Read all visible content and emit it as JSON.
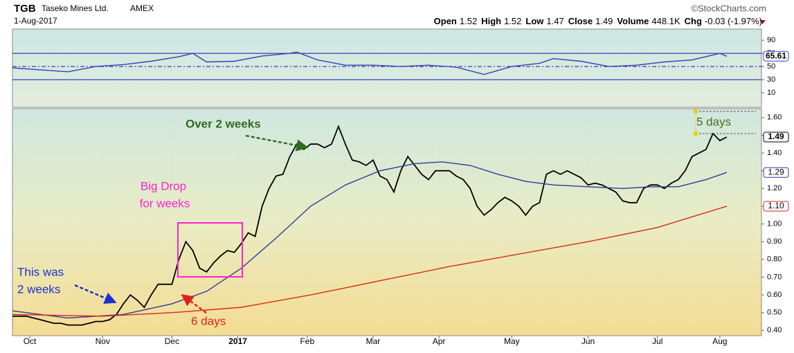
{
  "header": {
    "symbol": "TGB",
    "company": "Taseko Mines Ltd.",
    "exchange": "AMEX",
    "date": "1-Aug-2017",
    "source": "©StockCharts.com",
    "quote": [
      {
        "label": "Open",
        "value": "1.52"
      },
      {
        "label": "High",
        "value": "1.52"
      },
      {
        "label": "Low",
        "value": "1.47"
      },
      {
        "label": "Close",
        "value": "1.49"
      },
      {
        "label": "Volume",
        "value": "448.1K"
      },
      {
        "label": "Chg",
        "value": "-0.03 (-1.97%)"
      }
    ]
  },
  "chart_data": [
    {
      "type": "line",
      "xlim": [
        0,
        216
      ],
      "ylim": [
        -12,
        107
      ],
      "yticks": [
        10,
        30,
        50,
        70,
        90
      ],
      "reference_lines": [
        30,
        50,
        70
      ],
      "series": [
        {
          "name": "RSI",
          "color": "#3340b8",
          "label": "65.61",
          "x": [
            0,
            8,
            16,
            24,
            32,
            40,
            48,
            52,
            56,
            64,
            72,
            80,
            82,
            88,
            96,
            104,
            112,
            120,
            128,
            136,
            144,
            152,
            156,
            164,
            172,
            180,
            188,
            196,
            204,
            206
          ],
          "values": [
            48,
            45,
            42,
            50,
            53,
            58,
            65,
            70,
            57,
            58,
            66,
            70,
            72,
            60,
            52,
            52,
            50,
            52,
            49,
            38,
            50,
            55,
            62,
            58,
            50,
            52,
            57,
            60,
            70,
            65.61
          ]
        }
      ]
    },
    {
      "type": "line",
      "xlim": [
        0,
        216
      ],
      "ylim": [
        0.37,
        1.65
      ],
      "grid": true,
      "yticks": [
        {
          "value": 0.4,
          "label": "0.40"
        },
        {
          "value": 0.5,
          "label": "0.50"
        },
        {
          "value": 0.6,
          "label": "0.60"
        },
        {
          "value": 0.7,
          "label": "0.70"
        },
        {
          "value": 0.8,
          "label": "0.80"
        },
        {
          "value": 0.9,
          "label": "0.90"
        },
        {
          "value": 1.0,
          "label": "1.00"
        },
        {
          "value": 1.1,
          "label": "1.10"
        },
        {
          "value": 1.2,
          "label": "1.20"
        },
        {
          "value": 1.3,
          "label": "1.30"
        },
        {
          "value": 1.4,
          "label": "1.40"
        },
        {
          "value": 1.5,
          "label": "1.50"
        },
        {
          "value": 1.6,
          "label": "1.60"
        }
      ],
      "xticks": [
        {
          "value": 5,
          "label": "Oct"
        },
        {
          "value": 26,
          "label": "Nov"
        },
        {
          "value": 46,
          "label": "Dec"
        },
        {
          "value": 65,
          "label": "2017"
        },
        {
          "value": 85,
          "label": "Feb"
        },
        {
          "value": 104,
          "label": "Mar"
        },
        {
          "value": 123,
          "label": "Apr"
        },
        {
          "value": 144,
          "label": "May"
        },
        {
          "value": 166,
          "label": "Jun"
        },
        {
          "value": 186,
          "label": "Jul"
        },
        {
          "value": 204,
          "label": "Aug"
        }
      ],
      "series": [
        {
          "name": "TGB",
          "color": "#000000",
          "label": "1.49",
          "x": [
            0,
            2,
            4,
            6,
            8,
            10,
            12,
            14,
            16,
            18,
            20,
            22,
            24,
            26,
            28,
            30,
            32,
            34,
            36,
            38,
            40,
            42,
            44,
            46,
            48,
            50,
            52,
            54,
            56,
            58,
            60,
            62,
            64,
            66,
            68,
            70,
            72,
            74,
            76,
            78,
            80,
            82,
            84,
            86,
            88,
            90,
            92,
            94,
            96,
            98,
            100,
            102,
            104,
            106,
            108,
            110,
            112,
            114,
            116,
            118,
            120,
            122,
            124,
            126,
            128,
            130,
            132,
            134,
            136,
            138,
            140,
            142,
            144,
            146,
            148,
            150,
            152,
            154,
            156,
            158,
            160,
            162,
            164,
            166,
            168,
            170,
            172,
            174,
            176,
            178,
            180,
            182,
            184,
            186,
            188,
            190,
            192,
            194,
            196,
            198,
            200,
            202,
            204,
            206
          ],
          "values": [
            0.48,
            0.48,
            0.48,
            0.47,
            0.46,
            0.45,
            0.44,
            0.44,
            0.43,
            0.43,
            0.43,
            0.44,
            0.45,
            0.45,
            0.46,
            0.49,
            0.55,
            0.6,
            0.57,
            0.53,
            0.6,
            0.66,
            0.66,
            0.66,
            0.8,
            0.9,
            0.85,
            0.75,
            0.73,
            0.78,
            0.82,
            0.85,
            0.84,
            0.89,
            0.95,
            0.93,
            1.1,
            1.2,
            1.27,
            1.28,
            1.38,
            1.45,
            1.42,
            1.45,
            1.45,
            1.43,
            1.45,
            1.55,
            1.45,
            1.36,
            1.35,
            1.33,
            1.36,
            1.27,
            1.25,
            1.18,
            1.3,
            1.38,
            1.33,
            1.28,
            1.25,
            1.3,
            1.3,
            1.3,
            1.27,
            1.25,
            1.2,
            1.1,
            1.05,
            1.08,
            1.12,
            1.15,
            1.13,
            1.1,
            1.05,
            1.1,
            1.12,
            1.28,
            1.3,
            1.28,
            1.3,
            1.28,
            1.26,
            1.22,
            1.23,
            1.22,
            1.2,
            1.18,
            1.13,
            1.12,
            1.12,
            1.2,
            1.22,
            1.22,
            1.2,
            1.23,
            1.25,
            1.3,
            1.38,
            1.4,
            1.42,
            1.51,
            1.47,
            1.49
          ]
        },
        {
          "name": "MA(50)",
          "color": "#2b3a9a",
          "label": "1.29",
          "x": [
            0,
            16,
            32,
            46,
            56,
            66,
            76,
            86,
            96,
            106,
            116,
            124,
            132,
            140,
            148,
            156,
            166,
            176,
            184,
            192,
            200,
            206
          ],
          "values": [
            0.51,
            0.47,
            0.49,
            0.55,
            0.62,
            0.75,
            0.92,
            1.1,
            1.22,
            1.3,
            1.34,
            1.35,
            1.33,
            1.28,
            1.24,
            1.22,
            1.21,
            1.2,
            1.21,
            1.21,
            1.25,
            1.29
          ]
        },
        {
          "name": "MA(200)",
          "color": "#d42a1a",
          "label": "1.10",
          "x": [
            0,
            26,
            46,
            66,
            86,
            106,
            126,
            146,
            166,
            186,
            206
          ],
          "values": [
            0.49,
            0.48,
            0.5,
            0.53,
            0.6,
            0.68,
            0.76,
            0.83,
            0.9,
            0.98,
            1.1
          ]
        }
      ],
      "annotations": [
        "Over 2 weeks",
        "Big Drop",
        "for weeks",
        "This was",
        "2 weeks",
        "6 days",
        "5 days"
      ]
    }
  ]
}
